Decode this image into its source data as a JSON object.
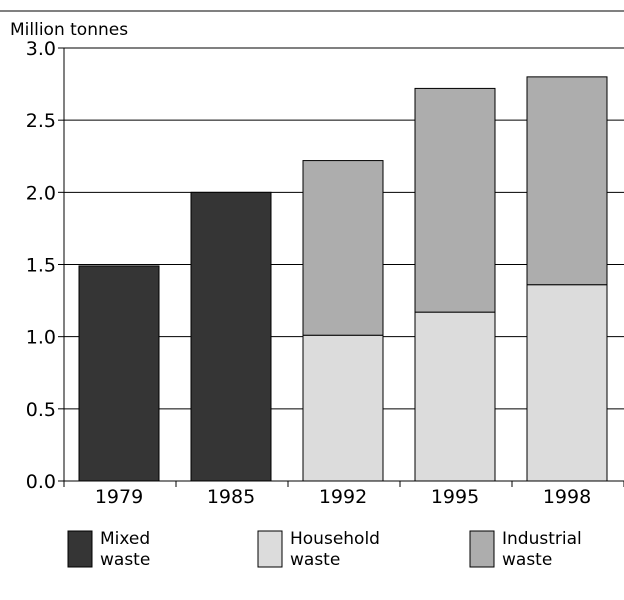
{
  "chart_data": {
    "type": "bar",
    "stacked": true,
    "categories": [
      "1979",
      "1985",
      "1992",
      "1995",
      "1998"
    ],
    "series": [
      {
        "name": "Mixed waste",
        "values": [
          1.49,
          2.0,
          0,
          0,
          0
        ],
        "color": "#353535"
      },
      {
        "name": "Household waste",
        "values": [
          0,
          0,
          1.01,
          1.17,
          1.36
        ],
        "color": "#dcdcdc"
      },
      {
        "name": "Industrial waste",
        "values": [
          0,
          0,
          1.21,
          1.55,
          1.44
        ],
        "color": "#adadad"
      }
    ],
    "title": "",
    "xlabel": "",
    "ylabel": "Million tonnes",
    "ylim": [
      0,
      3.0
    ],
    "yticks": [
      0.0,
      0.5,
      1.0,
      1.5,
      2.0,
      2.5,
      3.0
    ],
    "ytick_labels": [
      "0.0",
      "0.5",
      "1.0",
      "1.5",
      "2.0",
      "2.5",
      "3.0"
    ],
    "grid": true,
    "legend": {
      "position": "bottom",
      "entries": [
        {
          "line1": "Mixed",
          "line2": "waste"
        },
        {
          "line1": "Household",
          "line2": "waste"
        },
        {
          "line1": "Industrial",
          "line2": "waste"
        }
      ]
    }
  }
}
